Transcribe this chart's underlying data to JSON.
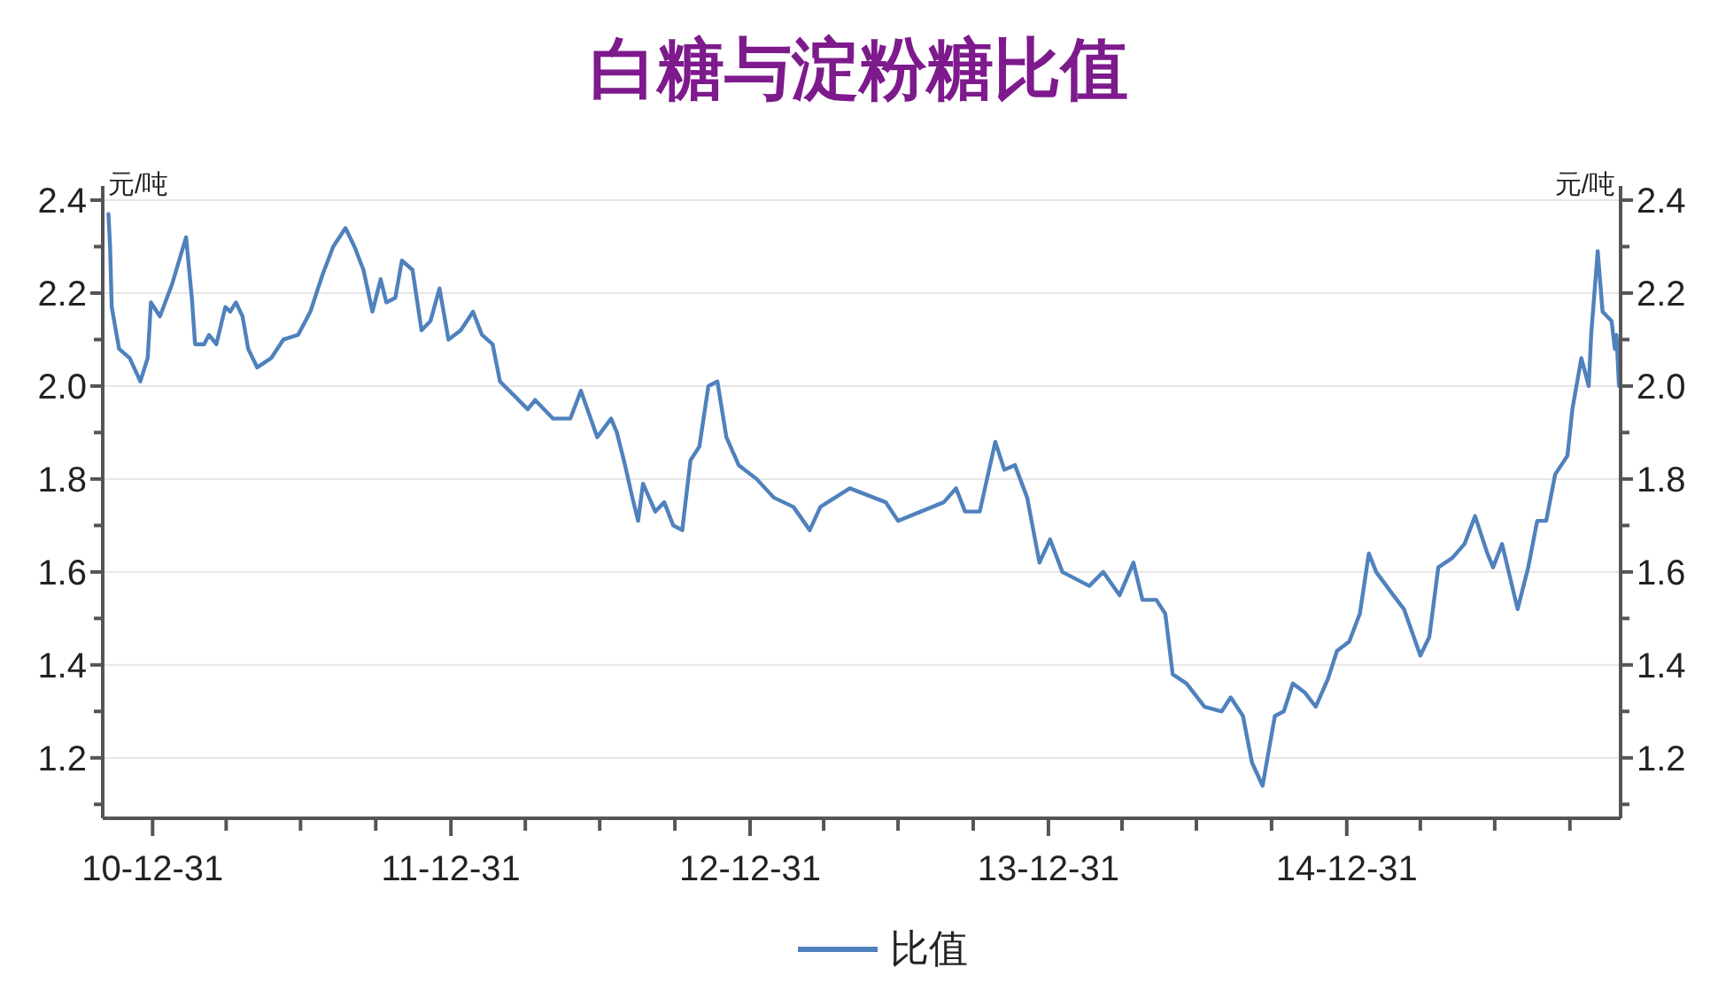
{
  "chart_data": {
    "type": "line",
    "title": "白糖与淀粉糖比值",
    "ylabel": "元/吨",
    "y2label": "元/吨",
    "x": [
      "2010-11-07",
      "2010-11-09",
      "2010-11-11",
      "2010-11-20",
      "2010-12-03",
      "2010-12-16",
      "2010-12-25",
      "2010-12-29",
      "2011-01-09",
      "2011-01-24",
      "2011-02-10",
      "2011-02-17",
      "2011-02-21",
      "2011-03-04",
      "2011-03-10",
      "2011-03-19",
      "2011-03-30",
      "2011-04-05",
      "2011-04-12",
      "2011-04-20",
      "2011-04-27",
      "2011-05-08",
      "2011-05-25",
      "2011-06-09",
      "2011-06-27",
      "2011-07-12",
      "2011-07-27",
      "2011-08-09",
      "2011-08-24",
      "2011-09-04",
      "2011-09-15",
      "2011-09-26",
      "2011-10-06",
      "2011-10-13",
      "2011-10-24",
      "2011-11-01",
      "2011-11-14",
      "2011-11-25",
      "2011-12-06",
      "2011-12-17",
      "2011-12-28",
      "2012-01-12",
      "2012-01-27",
      "2012-02-07",
      "2012-02-20",
      "2012-02-29",
      "2012-03-17",
      "2012-04-03",
      "2012-04-12",
      "2012-05-04",
      "2012-05-25",
      "2012-06-07",
      "2012-06-27",
      "2012-07-14",
      "2012-07-21",
      "2012-07-31",
      "2012-08-09",
      "2012-08-16",
      "2012-08-22",
      "2012-09-06",
      "2012-09-17",
      "2012-09-28",
      "2012-10-09",
      "2012-10-19",
      "2012-10-30",
      "2012-11-10",
      "2012-11-21",
      "2012-12-02",
      "2012-12-17",
      "2013-01-08",
      "2013-01-29",
      "2013-02-22",
      "2013-03-14",
      "2013-03-27",
      "2013-05-02",
      "2013-06-15",
      "2013-06-30",
      "2013-07-28",
      "2013-08-25",
      "2013-09-09",
      "2013-09-20",
      "2013-10-08",
      "2013-10-27",
      "2013-11-07",
      "2013-11-20",
      "2013-12-05",
      "2013-12-20",
      "2014-01-02",
      "2014-01-17",
      "2014-02-19",
      "2014-03-08",
      "2014-03-28",
      "2014-04-14",
      "2014-04-25",
      "2014-05-12",
      "2014-05-23",
      "2014-06-01",
      "2014-06-18",
      "2014-07-10",
      "2014-07-31",
      "2014-08-11",
      "2014-08-26",
      "2014-09-06",
      "2014-09-19",
      "2014-10-04",
      "2014-10-15",
      "2014-10-26",
      "2014-11-10",
      "2014-11-23",
      "2014-12-08",
      "2014-12-19",
      "2015-01-03",
      "2015-01-16",
      "2015-01-27",
      "2015-02-05",
      "2015-02-26",
      "2015-03-11",
      "2015-03-31",
      "2015-04-11",
      "2015-04-22",
      "2015-05-09",
      "2015-05-24",
      "2015-06-06",
      "2015-06-21",
      "2015-06-28",
      "2015-07-09",
      "2015-07-28",
      "2015-08-10",
      "2015-08-21",
      "2015-09-01",
      "2015-09-12",
      "2015-09-27",
      "2015-10-03",
      "2015-10-14",
      "2015-10-23",
      "2015-10-26",
      "2015-11-03",
      "2015-11-09",
      "2015-11-20",
      "2015-11-24",
      "2015-11-26",
      "2015-11-29"
    ],
    "series": [
      {
        "name": "比值",
        "color": "#4f81bd",
        "values": [
          2.37,
          2.3,
          2.17,
          2.08,
          2.06,
          2.01,
          2.06,
          2.18,
          2.15,
          2.22,
          2.32,
          2.19,
          2.09,
          2.09,
          2.11,
          2.09,
          2.17,
          2.16,
          2.18,
          2.15,
          2.08,
          2.04,
          2.06,
          2.1,
          2.11,
          2.16,
          2.24,
          2.3,
          2.34,
          2.3,
          2.25,
          2.16,
          2.23,
          2.18,
          2.19,
          2.27,
          2.25,
          2.12,
          2.14,
          2.21,
          2.1,
          2.12,
          2.16,
          2.11,
          2.09,
          2.01,
          1.98,
          1.95,
          1.97,
          1.93,
          1.93,
          1.99,
          1.89,
          1.93,
          1.9,
          1.83,
          1.76,
          1.71,
          1.79,
          1.73,
          1.75,
          1.7,
          1.69,
          1.84,
          1.87,
          2.0,
          2.01,
          1.89,
          1.83,
          1.8,
          1.76,
          1.74,
          1.69,
          1.74,
          1.78,
          1.75,
          1.71,
          1.73,
          1.75,
          1.78,
          1.73,
          1.73,
          1.88,
          1.82,
          1.83,
          1.76,
          1.62,
          1.67,
          1.6,
          1.57,
          1.6,
          1.55,
          1.62,
          1.54,
          1.54,
          1.51,
          1.38,
          1.36,
          1.31,
          1.3,
          1.33,
          1.29,
          1.19,
          1.14,
          1.29,
          1.3,
          1.36,
          1.34,
          1.31,
          1.37,
          1.43,
          1.45,
          1.51,
          1.64,
          1.6,
          1.55,
          1.52,
          1.42,
          1.46,
          1.61,
          1.63,
          1.66,
          1.72,
          1.64,
          1.61,
          1.66,
          1.52,
          1.61,
          1.71,
          1.71,
          1.81,
          1.85,
          1.95,
          2.06,
          2.0,
          2.11,
          2.29,
          2.16,
          2.14,
          2.08,
          2.11,
          2.0
        ]
      }
    ],
    "xlim": [
      "2010-10-31",
      "2015-12-01"
    ],
    "xticks": [
      {
        "value": "2010-12-31",
        "label": "10-12-31"
      },
      {
        "value": "2011-03-31",
        "label": null
      },
      {
        "value": "2011-06-30",
        "label": null
      },
      {
        "value": "2011-09-30",
        "label": null
      },
      {
        "value": "2011-12-31",
        "label": "11-12-31"
      },
      {
        "value": "2012-03-31",
        "label": null
      },
      {
        "value": "2012-06-30",
        "label": null
      },
      {
        "value": "2012-09-30",
        "label": null
      },
      {
        "value": "2012-12-31",
        "label": "12-12-31"
      },
      {
        "value": "2013-03-31",
        "label": null
      },
      {
        "value": "2013-06-30",
        "label": null
      },
      {
        "value": "2013-09-30",
        "label": null
      },
      {
        "value": "2013-12-31",
        "label": "13-12-31"
      },
      {
        "value": "2014-03-31",
        "label": null
      },
      {
        "value": "2014-06-30",
        "label": null
      },
      {
        "value": "2014-09-30",
        "label": null
      },
      {
        "value": "2014-12-31",
        "label": "14-12-31"
      },
      {
        "value": "2015-03-31",
        "label": null
      },
      {
        "value": "2015-06-30",
        "label": null
      },
      {
        "value": "2015-09-30",
        "label": null
      }
    ],
    "ylim": [
      1.07,
      2.4
    ],
    "yticks": [
      {
        "value": 1.1,
        "label": null
      },
      {
        "value": 1.2,
        "label": "1.2"
      },
      {
        "value": 1.3,
        "label": null
      },
      {
        "value": 1.4,
        "label": "1.4"
      },
      {
        "value": 1.5,
        "label": null
      },
      {
        "value": 1.6,
        "label": "1.6"
      },
      {
        "value": 1.7,
        "label": null
      },
      {
        "value": 1.8,
        "label": "1.8"
      },
      {
        "value": 1.9,
        "label": null
      },
      {
        "value": 2.0,
        "label": "2.0"
      },
      {
        "value": 2.1,
        "label": null
      },
      {
        "value": 2.2,
        "label": "2.2"
      },
      {
        "value": 2.3,
        "label": null
      },
      {
        "value": 2.4,
        "label": "2.4"
      }
    ],
    "y2lim": [
      1.07,
      2.4
    ],
    "y2ticks": [
      {
        "value": 1.1,
        "label": null
      },
      {
        "value": 1.2,
        "label": "1.2"
      },
      {
        "value": 1.3,
        "label": null
      },
      {
        "value": 1.4,
        "label": "1.4"
      },
      {
        "value": 1.5,
        "label": null
      },
      {
        "value": 1.6,
        "label": "1.6"
      },
      {
        "value": 1.7,
        "label": null
      },
      {
        "value": 1.8,
        "label": "1.8"
      },
      {
        "value": 1.9,
        "label": null
      },
      {
        "value": 2.0,
        "label": "2.0"
      },
      {
        "value": 2.1,
        "label": null
      },
      {
        "value": 2.2,
        "label": "2.2"
      },
      {
        "value": 2.3,
        "label": null
      },
      {
        "value": 2.4,
        "label": "2.4"
      }
    ],
    "grid": "y",
    "legend": "bottom",
    "line_style": "solid"
  }
}
